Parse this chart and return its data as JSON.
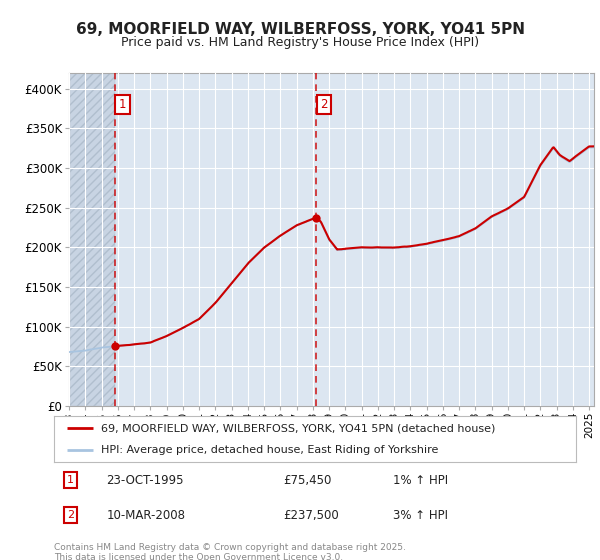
{
  "title1": "69, MOORFIELD WAY, WILBERFOSS, YORK, YO41 5PN",
  "title2": "Price paid vs. HM Land Registry's House Price Index (HPI)",
  "ylim": [
    0,
    420000
  ],
  "yticks": [
    0,
    50000,
    100000,
    150000,
    200000,
    250000,
    300000,
    350000,
    400000
  ],
  "ytick_labels": [
    "£0",
    "£50K",
    "£100K",
    "£150K",
    "£200K",
    "£250K",
    "£300K",
    "£350K",
    "£400K"
  ],
  "sale1_date": 1995.81,
  "sale1_price": 75450,
  "sale2_date": 2008.19,
  "sale2_price": 237500,
  "hpi_line_color": "#a8c4e0",
  "price_line_color": "#cc0000",
  "sale_marker_color": "#cc0000",
  "annotation1_label": "1",
  "annotation2_label": "2",
  "legend1": "69, MOORFIELD WAY, WILBERFOSS, YORK, YO41 5PN (detached house)",
  "legend2": "HPI: Average price, detached house, East Riding of Yorkshire",
  "footer1": "Contains HM Land Registry data © Crown copyright and database right 2025.",
  "footer2": "This data is licensed under the Open Government Licence v3.0.",
  "table1_label": "1",
  "table1_date": "23-OCT-1995",
  "table1_price": "£75,450",
  "table1_hpi": "1% ↑ HPI",
  "table2_label": "2",
  "table2_date": "10-MAR-2008",
  "table2_price": "£237,500",
  "table2_hpi": "3% ↑ HPI",
  "bg_color": "#ffffff",
  "plot_bg_color": "#dce6f1",
  "grid_color": "#ffffff",
  "xlim_start": 1993,
  "xlim_end": 2025.3
}
